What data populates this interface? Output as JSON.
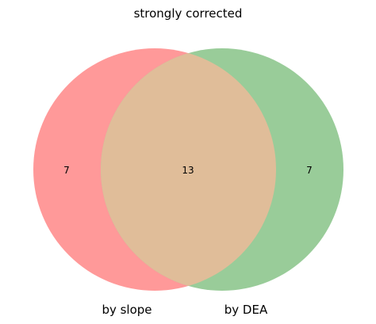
{
  "diagram": {
    "type": "venn2",
    "title": "strongly corrected",
    "sets": [
      {
        "label": "by slope",
        "color": "#ff9999"
      },
      {
        "label": "by DEA",
        "color": "#99cc99"
      }
    ],
    "overlap_color": "#e0bd99",
    "counts": {
      "only_left": "7",
      "both": "13",
      "only_right": "7"
    }
  }
}
